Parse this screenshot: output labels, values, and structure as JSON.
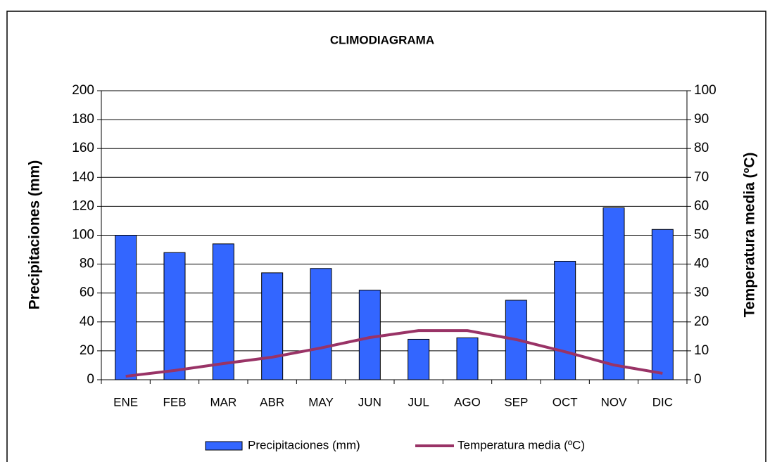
{
  "chart_data": {
    "type": "bar_line",
    "title": "CLIMODIAGRAMA",
    "categories": [
      "ENE",
      "FEB",
      "MAR",
      "ABR",
      "MAY",
      "JUN",
      "JUL",
      "AGO",
      "SEP",
      "OCT",
      "NOV",
      "DIC"
    ],
    "series": [
      {
        "name": "Precipitaciones (mm)",
        "type": "bar",
        "color": "#3366ff",
        "axis": "y",
        "values": [
          100,
          88,
          94,
          74,
          77,
          62,
          28,
          29,
          55,
          82,
          119,
          104
        ]
      },
      {
        "name": "Temperatura media (ºC)",
        "type": "line",
        "color": "#993366",
        "axis": "y2",
        "values": [
          1.2,
          3.2,
          5.6,
          7.8,
          11,
          14.6,
          17,
          17,
          13.9,
          9.7,
          5.1,
          2.2
        ]
      }
    ],
    "y_label": "Precipitaciones (mm)",
    "y2_label": "Temperatura media (ºC)",
    "ylim": [
      0,
      200
    ],
    "yticks": [
      0,
      20,
      40,
      60,
      80,
      100,
      120,
      140,
      160,
      180,
      200
    ],
    "y2lim": [
      0,
      100
    ],
    "y2ticks": [
      0,
      10,
      20,
      30,
      40,
      50,
      60,
      70,
      80,
      90,
      100
    ],
    "grid": true,
    "legend": "bottom"
  }
}
